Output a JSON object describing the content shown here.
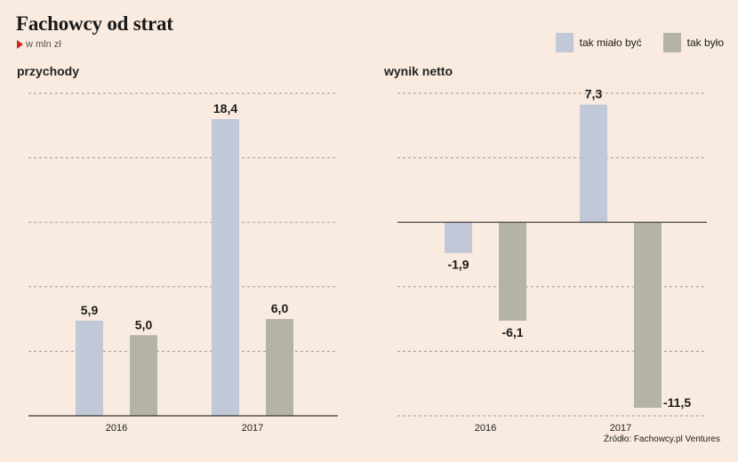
{
  "title": "Fachowcy od strat",
  "subtitle": "w mln zł",
  "source": "Źródło: Fachowcy.pl Ventures",
  "legend": [
    {
      "label": "tak miało być",
      "color": "#c1c8d8"
    },
    {
      "label": "tak było",
      "color": "#b4b3a5"
    }
  ],
  "chart_data": [
    {
      "type": "bar",
      "title": "przychody",
      "categories": [
        "2016",
        "2017"
      ],
      "series": [
        {
          "name": "tak miało być",
          "values": [
            5.9,
            18.4
          ],
          "labels": [
            "5,9",
            "18,4"
          ],
          "color": "#c1c8d8"
        },
        {
          "name": "tak było",
          "values": [
            5.0,
            6.0
          ],
          "labels": [
            "5,0",
            "6,0"
          ],
          "color": "#b4b3a5"
        }
      ],
      "ylim": [
        0,
        20
      ],
      "grid": true
    },
    {
      "type": "bar",
      "title": "wynik netto",
      "categories": [
        "2016",
        "2017"
      ],
      "series": [
        {
          "name": "tak miało być",
          "values": [
            -1.9,
            7.3
          ],
          "labels": [
            "-1,9",
            "7,3"
          ],
          "color": "#c1c8d8"
        },
        {
          "name": "tak było",
          "values": [
            -6.1,
            -11.5
          ],
          "labels": [
            "-6,1",
            "-11,5"
          ],
          "color": "#b4b3a5"
        }
      ],
      "ylim": [
        -12,
        8
      ],
      "grid": true
    }
  ]
}
